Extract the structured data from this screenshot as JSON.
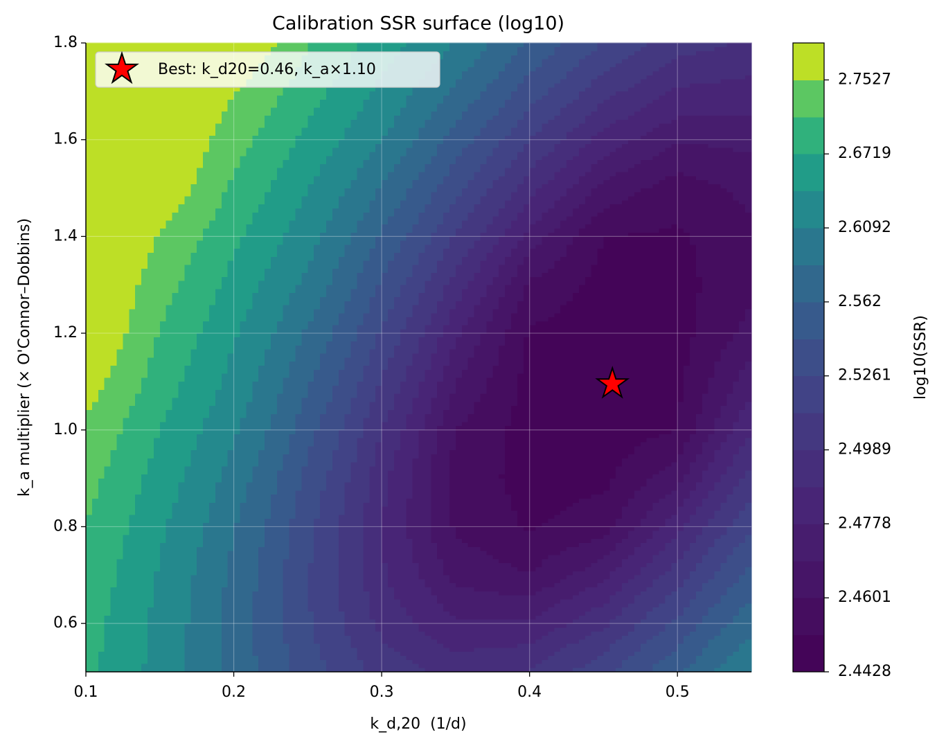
{
  "chart_data": {
    "type": "contour",
    "title": "Calibration SSR surface (log10)",
    "xlabel": "k_d,20  (1/d)",
    "ylabel": "k_a multiplier (× O'Connor–Dobbins)",
    "colorbar_label": "log10(SSR)",
    "cmap": "viridis",
    "x": [
      0.1,
      0.15,
      0.2,
      0.25,
      0.3,
      0.35,
      0.4,
      0.45,
      0.5,
      0.55
    ],
    "y": [
      0.5,
      0.6,
      0.7,
      0.8,
      0.9,
      1.0,
      1.1,
      1.2,
      1.3,
      1.4,
      1.5,
      1.6,
      1.7,
      1.8
    ],
    "z": [
      [
        2.681,
        2.6274,
        2.575,
        2.5332,
        2.506,
        2.4945,
        2.4996,
        2.5212,
        2.5569,
        2.6095
      ],
      [
        2.6871,
        2.6301,
        2.5741,
        2.5278,
        2.4954,
        2.4786,
        2.479,
        2.4964,
        2.5293,
        2.5761
      ],
      [
        2.6963,
        2.6357,
        2.5776,
        2.5268,
        2.4894,
        2.4664,
        2.4606,
        2.4752,
        2.5047,
        2.5478
      ],
      [
        2.7085,
        2.6449,
        2.5853,
        2.53,
        2.488,
        2.4586,
        2.4505,
        2.4563,
        2.4838,
        2.5241
      ],
      [
        2.7245,
        2.6571,
        2.5981,
        2.5374,
        2.4913,
        2.4567,
        2.4483,
        2.4492,
        2.4659,
        2.5035
      ],
      [
        2.7437,
        2.6719,
        2.6137,
        2.5491,
        2.4989,
        2.4601,
        2.4474,
        2.446,
        2.4516,
        2.487
      ],
      [
        2.7743,
        2.6902,
        2.6283,
        2.5644,
        2.5108,
        2.4692,
        2.4485,
        2.4433,
        2.4493,
        2.4742
      ],
      [
        2.8076,
        2.707,
        2.6423,
        2.5805,
        2.5238,
        2.4797,
        2.4505,
        2.4458,
        2.448,
        2.4633
      ],
      [
        2.815,
        2.7275,
        2.6594,
        2.6011,
        2.5398,
        2.4936,
        2.4586,
        2.4485,
        2.4485,
        2.458
      ],
      [
        2.82,
        2.7501,
        2.6788,
        2.6208,
        2.5592,
        2.5104,
        2.4743,
        2.4514,
        2.4501,
        2.4579
      ],
      [
        2.823,
        2.7914,
        2.7012,
        2.64,
        2.5822,
        2.5303,
        2.4916,
        2.4661,
        2.4556,
        2.4626
      ],
      [
        2.825,
        2.812,
        2.7267,
        2.6624,
        2.6098,
        2.5527,
        2.5111,
        2.4836,
        2.4698,
        2.4716
      ],
      [
        2.827,
        2.818,
        2.7558,
        2.6868,
        2.6318,
        2.5785,
        2.534,
        2.5031,
        2.4865,
        2.4835
      ],
      [
        2.829,
        2.823,
        2.8053,
        2.713,
        2.6551,
        2.6079,
        2.5582,
        2.5247,
        2.5041,
        2.4976
      ]
    ],
    "levels": [
      2.4428,
      2.4515,
      2.4601,
      2.469,
      2.4778,
      2.488,
      2.4989,
      2.512,
      2.5261,
      2.543,
      2.562,
      2.584,
      2.6092,
      2.639,
      2.6719,
      2.71,
      2.7527,
      2.83
    ],
    "cbar_ticks": [
      2.4428,
      2.4601,
      2.4778,
      2.4989,
      2.5261,
      2.562,
      2.6092,
      2.6719,
      2.7527
    ],
    "xlim": [
      0.1,
      0.55
    ],
    "xticks": [
      0.1,
      0.2,
      0.3,
      0.4,
      0.5
    ],
    "ylim": [
      0.5,
      1.8
    ],
    "yticks": [
      0.6,
      0.8,
      {
        "value": 1,
        "label": "1.0"
      },
      1.2,
      1.4,
      1.6,
      1.8
    ],
    "grid": true,
    "legend": "upper left",
    "best": {
      "x": 0.456,
      "y": 1.095,
      "label": "Best: k_d20=0.46, k_a×1.10",
      "color": "#ff0000"
    }
  }
}
